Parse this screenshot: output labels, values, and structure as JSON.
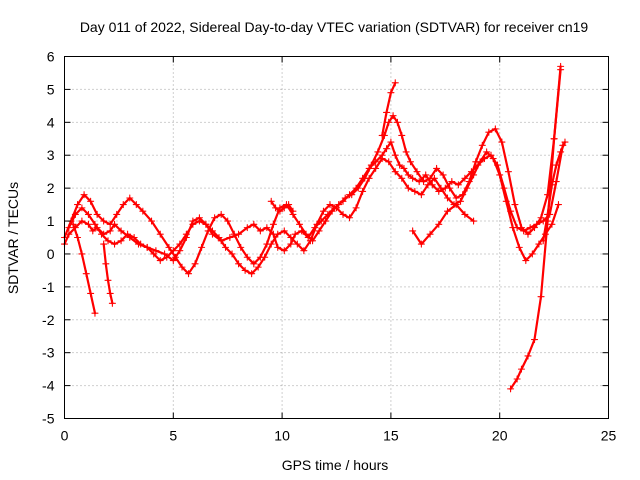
{
  "chart_data": {
    "type": "scatter",
    "title": "Day 011 of 2022, Sidereal Day-to-day VTEC variation (SDTVAR) for receiver cn19",
    "xlabel": "GPS time / hours",
    "ylabel": "SDTVAR / TECUs",
    "xlim": [
      0,
      25
    ],
    "ylim": [
      -5,
      6
    ],
    "xticks": [
      0,
      5,
      10,
      15,
      20,
      25
    ],
    "yticks": [
      -5,
      -4,
      -3,
      -2,
      -1,
      0,
      1,
      2,
      3,
      4,
      5,
      6
    ],
    "grid": true,
    "marker": "+",
    "color": "#ff0000",
    "series": [
      {
        "x": [
          0.0,
          0.2,
          0.5,
          0.8,
          1.1,
          1.3,
          1.5,
          1.8,
          2.1,
          2.3,
          2.6,
          3.0,
          3.4,
          3.8,
          4.2,
          4.6,
          5.0,
          5.3,
          5.6,
          5.9,
          6.2,
          6.5,
          6.8,
          7.2,
          7.6,
          8.0,
          8.4,
          8.7,
          9.0,
          9.3,
          9.6,
          9.8,
          10.1,
          10.4,
          10.6,
          10.9,
          11.2,
          11.5,
          11.8,
          12.1,
          12.4,
          12.8,
          13.1,
          13.4,
          13.7,
          14.0,
          14.3,
          14.6,
          14.8,
          15.0,
          15.2,
          15.4,
          15.6,
          15.8,
          16.0,
          16.3,
          16.6,
          16.9,
          17.2,
          17.5,
          17.8,
          18.1,
          18.4,
          18.7,
          19.0,
          19.3,
          19.6,
          19.9,
          20.2,
          20.5,
          20.8,
          21.1,
          21.4,
          21.7,
          22.0,
          22.3,
          22.6,
          22.9
        ],
        "y": [
          0.3,
          0.6,
          0.8,
          1.0,
          0.9,
          0.7,
          0.8,
          0.6,
          0.7,
          0.9,
          0.7,
          0.5,
          0.3,
          0.2,
          0.1,
          0.0,
          -0.2,
          0.1,
          0.5,
          1.0,
          1.1,
          0.9,
          0.6,
          0.4,
          0.5,
          0.6,
          0.8,
          0.9,
          0.7,
          0.8,
          0.6,
          0.2,
          0.1,
          0.3,
          0.6,
          0.7,
          0.5,
          0.8,
          1.0,
          1.2,
          1.4,
          1.6,
          1.8,
          2.0,
          2.3,
          2.6,
          2.8,
          3.0,
          3.2,
          3.4,
          3.0,
          2.7,
          2.6,
          2.4,
          2.3,
          2.2,
          2.4,
          2.1,
          1.9,
          2.0,
          2.2,
          2.1,
          2.3,
          2.5,
          2.7,
          2.9,
          3.0,
          2.7,
          2.0,
          1.3,
          0.8,
          0.7,
          0.8,
          0.9,
          1.0,
          1.2,
          2.2,
          3.3
        ]
      },
      {
        "x": [
          0.0,
          0.3,
          0.6,
          0.9,
          1.2,
          1.5,
          1.8,
          2.1,
          2.4,
          2.7,
          3.0,
          3.3,
          3.6,
          4.0,
          4.4,
          4.8,
          5.1,
          5.4,
          5.7,
          6.0,
          6.3,
          6.6,
          6.9,
          7.2,
          7.5,
          7.8,
          8.1,
          8.4,
          8.7,
          9.0,
          9.3,
          9.6,
          9.9,
          10.2,
          10.5,
          10.8,
          11.1,
          11.4,
          11.7,
          12.0,
          12.3,
          12.6,
          12.9,
          13.2,
          13.5,
          13.8,
          14.1,
          14.4,
          14.7,
          14.9,
          15.1,
          15.3,
          15.5,
          15.7,
          15.9,
          16.2,
          16.5,
          16.8,
          17.1,
          17.4,
          17.7,
          18.0,
          18.3,
          18.6,
          18.9,
          19.2,
          19.5,
          19.8,
          20.1,
          20.4,
          20.7,
          21.0,
          21.3,
          21.6,
          21.9,
          22.2,
          22.5,
          22.8
        ],
        "y": [
          0.5,
          1.0,
          1.5,
          1.8,
          1.6,
          1.2,
          1.0,
          0.9,
          1.2,
          1.5,
          1.7,
          1.5,
          1.3,
          1.0,
          0.6,
          0.2,
          -0.1,
          -0.4,
          -0.6,
          -0.3,
          0.2,
          0.7,
          1.1,
          1.2,
          1.0,
          0.6,
          0.2,
          -0.1,
          -0.3,
          -0.1,
          0.3,
          0.9,
          1.4,
          1.5,
          1.2,
          0.9,
          0.6,
          0.4,
          0.7,
          1.0,
          1.3,
          1.5,
          1.7,
          1.8,
          2.0,
          2.3,
          2.7,
          3.1,
          3.6,
          4.0,
          4.2,
          4.0,
          3.6,
          3.1,
          2.8,
          2.5,
          2.2,
          2.3,
          2.6,
          2.4,
          2.0,
          1.7,
          1.8,
          2.2,
          2.8,
          3.3,
          3.7,
          3.8,
          3.4,
          2.5,
          1.5,
          0.8,
          0.6,
          0.8,
          1.1,
          1.8,
          3.5,
          5.6
        ]
      },
      {
        "x": [
          0.2,
          0.5,
          0.8,
          1.1,
          1.4,
          1.7,
          2.0,
          2.3,
          2.6,
          2.9,
          3.2,
          3.5,
          3.8,
          4.1,
          4.4,
          4.7,
          5.0,
          5.3,
          5.6,
          5.9,
          6.2,
          6.5,
          6.8,
          7.1,
          7.4,
          7.7,
          8.0,
          8.3,
          8.6,
          8.9,
          9.2,
          9.5,
          9.8,
          10.1,
          10.4,
          10.7,
          11.0,
          11.3,
          11.6,
          11.9,
          12.2,
          12.5,
          12.8,
          13.1,
          13.4,
          13.7,
          14.0,
          14.3,
          14.6,
          14.9,
          15.2,
          15.5,
          15.8,
          16.1,
          16.4,
          16.7,
          17.0,
          17.3,
          17.6,
          17.9,
          18.2,
          18.5,
          18.8,
          19.1,
          19.4,
          19.7,
          20.0,
          20.3,
          20.6,
          20.9,
          21.2,
          21.5,
          21.8,
          22.1,
          22.4,
          22.7
        ],
        "y": [
          0.8,
          1.2,
          1.4,
          1.2,
          0.9,
          0.6,
          0.4,
          0.3,
          0.4,
          0.6,
          0.5,
          0.3,
          0.2,
          0.0,
          -0.2,
          -0.1,
          0.1,
          0.3,
          0.6,
          0.9,
          1.0,
          0.9,
          0.7,
          0.5,
          0.2,
          0.0,
          -0.3,
          -0.5,
          -0.6,
          -0.4,
          -0.1,
          0.3,
          0.6,
          0.7,
          0.5,
          0.3,
          0.1,
          0.4,
          0.9,
          1.3,
          1.5,
          1.4,
          1.2,
          1.1,
          1.4,
          1.9,
          2.3,
          2.6,
          2.9,
          2.8,
          2.5,
          2.3,
          2.0,
          1.9,
          1.8,
          2.1,
          2.3,
          2.0,
          1.7,
          1.5,
          1.6,
          2.0,
          2.4,
          2.8,
          3.1,
          2.9,
          2.4,
          1.6,
          0.8,
          0.2,
          -0.2,
          0.0,
          0.3,
          0.6,
          0.9,
          1.5
        ]
      },
      {
        "x": [
          0.4,
          0.6,
          0.8,
          1.0,
          1.2,
          1.4
        ],
        "y": [
          0.9,
          0.5,
          0.0,
          -0.6,
          -1.2,
          -1.8
        ]
      },
      {
        "x": [
          1.8,
          1.9,
          2.0,
          2.1,
          2.2
        ],
        "y": [
          0.3,
          -0.3,
          -0.8,
          -1.2,
          -1.5
        ]
      },
      {
        "x": [
          9.5,
          9.7,
          9.9,
          10.1,
          10.3,
          10.5
        ],
        "y": [
          1.6,
          1.4,
          1.3,
          1.4,
          1.5,
          1.3
        ]
      },
      {
        "x": [
          14.6,
          14.8,
          15.0,
          15.2
        ],
        "y": [
          3.6,
          4.3,
          4.9,
          5.2
        ]
      },
      {
        "x": [
          16.0,
          16.4,
          16.8,
          17.2,
          17.6,
          18.0,
          18.4,
          18.8
        ],
        "y": [
          0.7,
          0.3,
          0.6,
          0.9,
          1.3,
          1.5,
          1.2,
          1.0
        ]
      },
      {
        "x": [
          20.5,
          20.8,
          21.0,
          21.3,
          21.6,
          21.9,
          22.2,
          22.5,
          22.8
        ],
        "y": [
          -4.1,
          -3.8,
          -3.5,
          -3.1,
          -2.6,
          -1.3,
          1.0,
          3.5,
          5.7
        ]
      },
      {
        "x": [
          22.0,
          22.2,
          22.4,
          22.6,
          22.8,
          23.0
        ],
        "y": [
          0.4,
          1.2,
          2.1,
          2.7,
          3.1,
          3.4
        ]
      }
    ]
  }
}
